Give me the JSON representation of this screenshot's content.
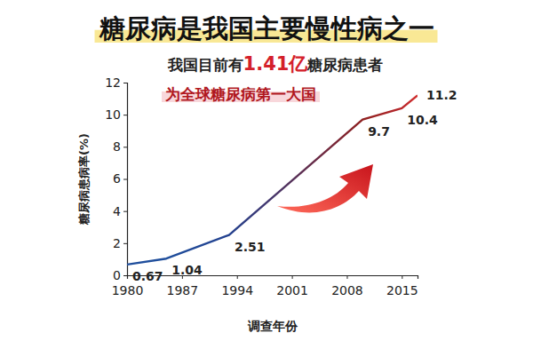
{
  "chart_data": {
    "type": "line",
    "title": "糖尿病是我国主要慢性病之一",
    "subtitle": [
      "我国目前有",
      "1.41亿",
      "糖尿病患者"
    ],
    "annotation": "为全球糖尿病第一大国",
    "x_label": "调查年份",
    "y_label": "糖尿病患病率(%)",
    "x": [
      1980,
      1985,
      1993,
      2010,
      2015,
      2017
    ],
    "values": [
      0.67,
      1.04,
      2.51,
      9.7,
      10.4,
      11.2
    ],
    "colors": [
      "#1f4e9c",
      "#1f4e9c",
      "#23418f",
      "#8e1f1f",
      "#b8262a",
      "#d12f2f"
    ],
    "xlim": [
      1980,
      2017
    ],
    "xticks": [
      1980,
      1987,
      1994,
      2001,
      2008,
      2015
    ],
    "ylim": [
      0,
      12
    ],
    "yticks": [
      0,
      2,
      4,
      6,
      8,
      10,
      12
    ],
    "data_labels": true
  }
}
